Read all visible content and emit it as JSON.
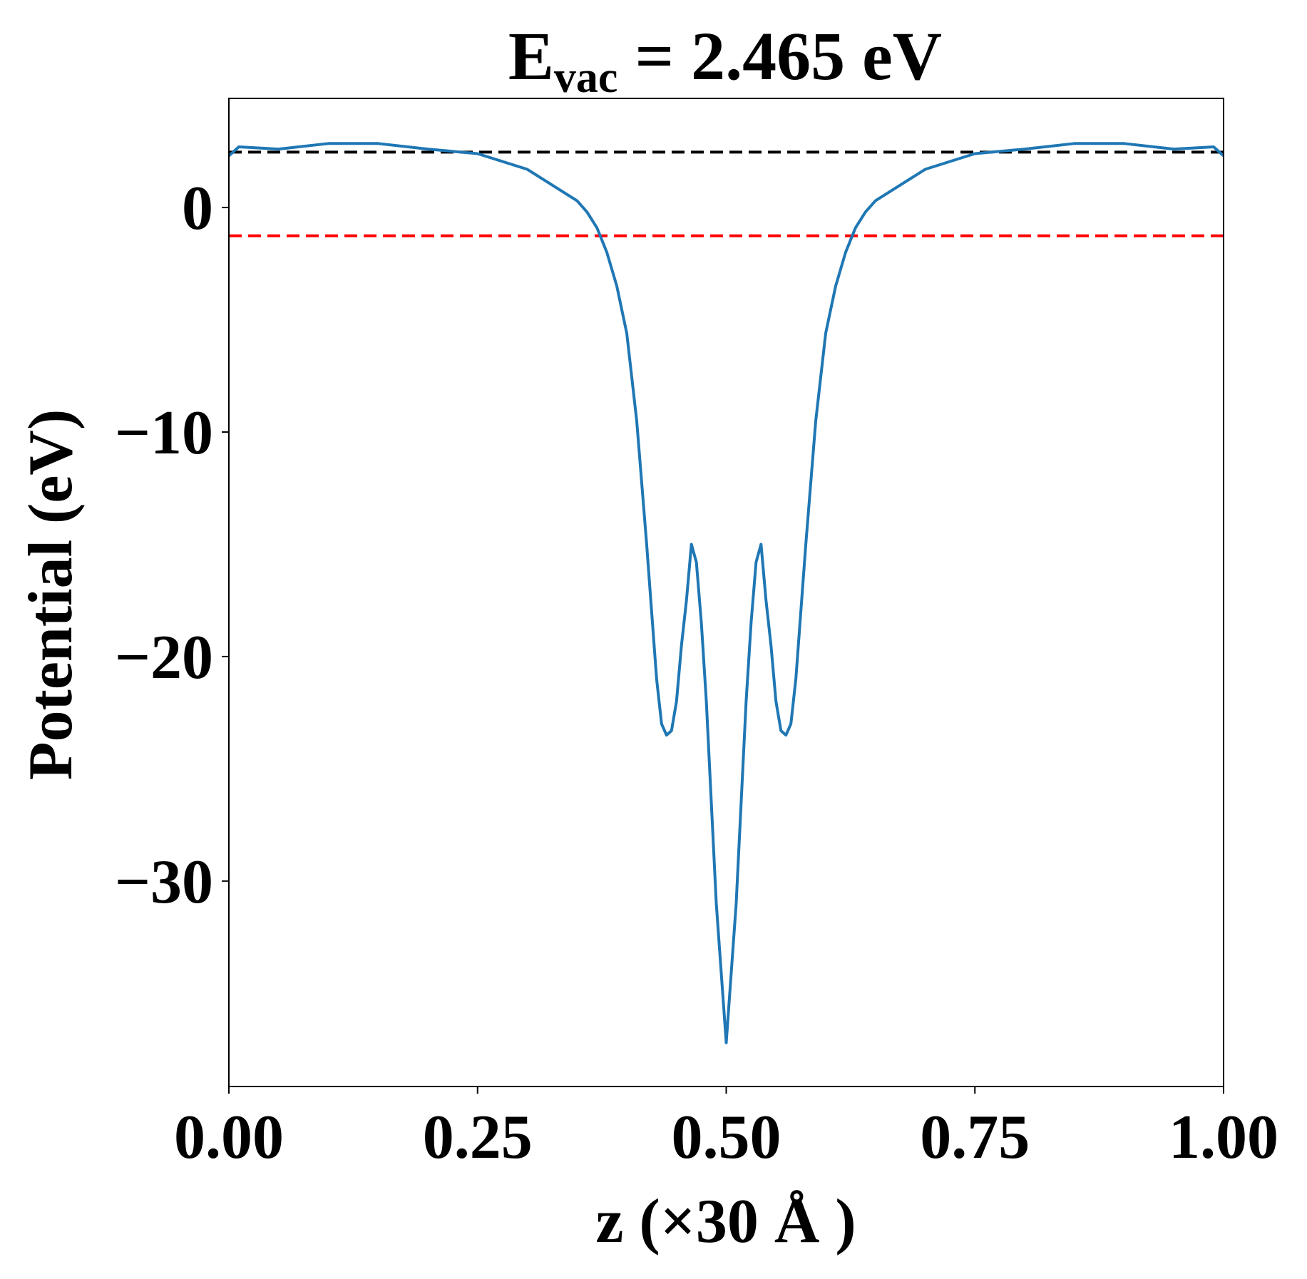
{
  "chart_data": {
    "type": "line",
    "title": {
      "base": "E",
      "sub": "vac",
      "rest": " = 2.465 eV"
    },
    "xlabel": "z (×30 Å )",
    "ylabel": "Potential (eV)",
    "x": [
      0,
      0.01,
      0.05,
      0.1,
      0.15,
      0.2,
      0.25,
      0.3,
      0.35,
      0.36,
      0.37,
      0.38,
      0.39,
      0.4,
      0.41,
      0.42,
      0.425,
      0.43,
      0.435,
      0.44,
      0.445,
      0.45,
      0.455,
      0.46,
      0.465,
      0.47,
      0.475,
      0.48,
      0.49,
      0.5,
      0.51,
      0.52,
      0.525,
      0.53,
      0.535,
      0.54,
      0.545,
      0.55,
      0.555,
      0.56,
      0.565,
      0.57,
      0.575,
      0.58,
      0.59,
      0.6,
      0.61,
      0.62,
      0.63,
      0.64,
      0.65,
      0.7,
      0.75,
      0.8,
      0.85,
      0.9,
      0.95,
      0.99,
      1.0
    ],
    "series": [
      {
        "name": "potential",
        "color": "#1f77b4",
        "values": [
          2.3,
          2.7,
          2.6,
          2.85,
          2.85,
          2.6,
          2.4,
          1.7,
          0.3,
          -0.2,
          -0.9,
          -2.0,
          -3.5,
          -5.6,
          -9.5,
          -15.0,
          -18.0,
          -21.0,
          -23.0,
          -23.5,
          -23.3,
          -22.0,
          -19.5,
          -17.5,
          -15.0,
          -15.8,
          -18.5,
          -22.0,
          -31.0,
          -37.2,
          -31.0,
          -22.0,
          -18.5,
          -15.8,
          -15.0,
          -17.5,
          -19.5,
          -22.0,
          -23.3,
          -23.5,
          -23.0,
          -21.0,
          -18.0,
          -15.0,
          -9.5,
          -5.6,
          -3.5,
          -2.0,
          -0.9,
          -0.2,
          0.3,
          1.7,
          2.4,
          2.6,
          2.85,
          2.85,
          2.6,
          2.7,
          2.3
        ]
      }
    ],
    "hlines": [
      {
        "value": 2.465,
        "color": "#000000"
      },
      {
        "value": -1.26,
        "color": "#ff0000"
      }
    ],
    "xlim": [
      0,
      1
    ],
    "ylim": [
      -39.15,
      4.86
    ],
    "xticks": [
      {
        "value": 0,
        "label": "0.00"
      },
      {
        "value": 0.25,
        "label": "0.25"
      },
      {
        "value": 0.5,
        "label": "0.50"
      },
      {
        "value": 0.75,
        "label": "0.75"
      },
      {
        "value": 1,
        "label": "1.00"
      }
    ],
    "yticks": [
      {
        "value": 0,
        "label": "0"
      },
      {
        "value": -10,
        "label": "−10"
      },
      {
        "value": -20,
        "label": "−20"
      },
      {
        "value": -30,
        "label": "−30"
      }
    ]
  }
}
